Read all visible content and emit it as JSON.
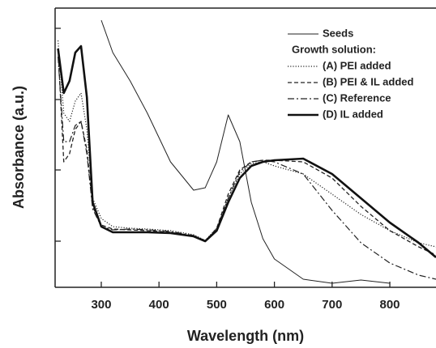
{
  "chart_data": {
    "type": "line",
    "xlabel": "Wavelength (nm)",
    "ylabel": "Absorbance (a.u.)",
    "legend_title": "Growth solution:",
    "legend": "upper right",
    "xlim": [
      220,
      880
    ],
    "ylim": [
      0,
      3.45
    ],
    "xticks": [
      300,
      400,
      500,
      600,
      700,
      800
    ],
    "yticks": [
      0.57,
      1.45,
      2.32,
      3.2
    ],
    "x": [
      225,
      235,
      245,
      255,
      265,
      275,
      285,
      300,
      320,
      350,
      380,
      420,
      460,
      480,
      500,
      520,
      540,
      560,
      580,
      600,
      650,
      700,
      750,
      800,
      850,
      880
    ],
    "series": [
      {
        "name": "Seeds",
        "color": "#222222",
        "dash": "solid",
        "width": 1,
        "values": [
          null,
          null,
          null,
          null,
          null,
          null,
          null,
          3.3,
          2.9,
          2.55,
          2.15,
          1.55,
          1.2,
          1.23,
          1.55,
          2.13,
          1.8,
          1.05,
          0.6,
          0.35,
          0.1,
          0.05,
          0.09,
          0.05,
          null,
          null
        ]
      },
      {
        "name": "(A) PEI added",
        "color": "#222222",
        "dash": "dotted",
        "width": 1.2,
        "values": [
          3.05,
          2.15,
          2.05,
          2.3,
          2.4,
          1.95,
          1.1,
          0.85,
          0.75,
          0.73,
          0.72,
          0.7,
          0.65,
          0.58,
          0.73,
          1.1,
          1.4,
          1.53,
          1.55,
          1.5,
          1.4,
          1.15,
          0.9,
          0.7,
          0.55,
          0.5
        ]
      },
      {
        "name": "(B) PEI & IL added",
        "color": "#222222",
        "dash": "dashed",
        "width": 1.3,
        "values": [
          2.95,
          1.55,
          1.65,
          1.95,
          2.05,
          1.7,
          1.0,
          0.77,
          0.72,
          0.71,
          0.7,
          0.68,
          0.63,
          0.57,
          0.73,
          1.15,
          1.45,
          1.55,
          1.57,
          1.57,
          1.55,
          1.35,
          1.0,
          0.7,
          0.5,
          0.4
        ]
      },
      {
        "name": "(C) Reference",
        "color": "#222222",
        "dash": "dashdot",
        "width": 1.2,
        "values": [
          2.85,
          1.8,
          1.8,
          2.0,
          2.05,
          1.65,
          0.97,
          0.75,
          0.71,
          0.72,
          0.71,
          0.69,
          0.64,
          0.57,
          0.72,
          1.1,
          1.43,
          1.55,
          1.57,
          1.55,
          1.4,
          0.95,
          0.55,
          0.3,
          0.15,
          0.1
        ]
      },
      {
        "name": "(D) IL added",
        "color": "#111111",
        "dash": "solid",
        "width": 2.6,
        "values": [
          2.95,
          2.4,
          2.55,
          2.9,
          2.98,
          2.35,
          1.05,
          0.75,
          0.68,
          0.68,
          0.68,
          0.67,
          0.63,
          0.57,
          0.7,
          1.05,
          1.35,
          1.5,
          1.55,
          1.57,
          1.59,
          1.4,
          1.1,
          0.8,
          0.55,
          0.37
        ]
      }
    ]
  }
}
